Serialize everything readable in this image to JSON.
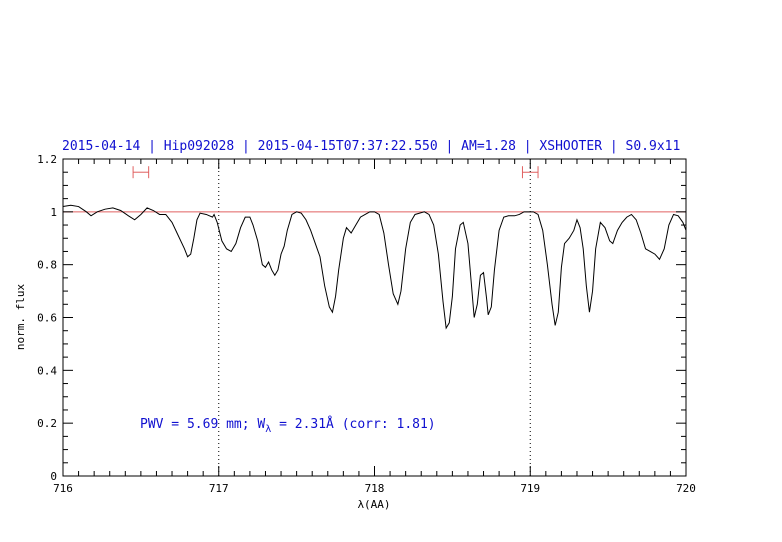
{
  "chart_data": {
    "type": "line",
    "title": "2015-04-14 | Hip092028 | 2015-04-15T07:37:22.550 | AM=1.28 | XSHOOTER | S0.9x11",
    "xlabel": "λ(AA)",
    "ylabel": "norm. flux",
    "xlim": [
      716,
      720
    ],
    "ylim": [
      0,
      1.2
    ],
    "x_ticks": [
      "716",
      "717",
      "718",
      "719",
      "720"
    ],
    "y_ticks": [
      "0",
      "0.2",
      "0.4",
      "0.6",
      "0.8",
      "1",
      "1.2"
    ],
    "x_tick_values": [
      716,
      717,
      718,
      719,
      720
    ],
    "y_tick_values": [
      0,
      0.2,
      0.4,
      0.6,
      0.8,
      1.0,
      1.2
    ],
    "grid": false,
    "annotation": {
      "pre": "PWV = 5.69 mm; W",
      "sub": "λ",
      "post": " = 2.31Å (corr: 1.81)"
    },
    "reference_line": {
      "y": 1.0,
      "color": "#e06060"
    },
    "vertical_markers": [
      717.0,
      719.0
    ],
    "continuum_intervals": [
      {
        "x1": 716.45,
        "x2": 716.55,
        "y": 1.15
      },
      {
        "x1": 718.95,
        "x2": 719.05,
        "y": 1.15
      }
    ],
    "colors": {
      "title": "#1010d0",
      "annotation": "#1010d0",
      "spectrum": "#000000",
      "reference": "#e06060"
    },
    "series": [
      {
        "points": [
          [
            716.0,
            1.02
          ],
          [
            716.05,
            1.025
          ],
          [
            716.1,
            1.02
          ],
          [
            716.15,
            1.0
          ],
          [
            716.18,
            0.985
          ],
          [
            716.22,
            1.0
          ],
          [
            716.27,
            1.01
          ],
          [
            716.32,
            1.015
          ],
          [
            716.37,
            1.005
          ],
          [
            716.42,
            0.985
          ],
          [
            716.46,
            0.97
          ],
          [
            716.5,
            0.99
          ],
          [
            716.54,
            1.015
          ],
          [
            716.58,
            1.005
          ],
          [
            716.62,
            0.99
          ],
          [
            716.66,
            0.99
          ],
          [
            716.7,
            0.96
          ],
          [
            716.74,
            0.91
          ],
          [
            716.78,
            0.86
          ],
          [
            716.8,
            0.83
          ],
          [
            716.82,
            0.84
          ],
          [
            716.84,
            0.9
          ],
          [
            716.86,
            0.97
          ],
          [
            716.88,
            0.995
          ],
          [
            716.92,
            0.99
          ],
          [
            716.94,
            0.985
          ],
          [
            716.96,
            0.98
          ],
          [
            716.97,
            0.99
          ],
          [
            716.99,
            0.96
          ],
          [
            717.02,
            0.89
          ],
          [
            717.05,
            0.86
          ],
          [
            717.08,
            0.85
          ],
          [
            717.11,
            0.88
          ],
          [
            717.14,
            0.94
          ],
          [
            717.17,
            0.98
          ],
          [
            717.2,
            0.98
          ],
          [
            717.22,
            0.95
          ],
          [
            717.25,
            0.89
          ],
          [
            717.28,
            0.8
          ],
          [
            717.3,
            0.79
          ],
          [
            717.32,
            0.81
          ],
          [
            717.34,
            0.78
          ],
          [
            717.36,
            0.76
          ],
          [
            717.38,
            0.78
          ],
          [
            717.4,
            0.84
          ],
          [
            717.42,
            0.87
          ],
          [
            717.44,
            0.93
          ],
          [
            717.47,
            0.99
          ],
          [
            717.5,
            1.0
          ],
          [
            717.53,
            0.995
          ],
          [
            717.56,
            0.97
          ],
          [
            717.59,
            0.93
          ],
          [
            717.62,
            0.88
          ],
          [
            717.65,
            0.83
          ],
          [
            717.68,
            0.72
          ],
          [
            717.71,
            0.64
          ],
          [
            717.73,
            0.62
          ],
          [
            717.75,
            0.68
          ],
          [
            717.77,
            0.78
          ],
          [
            717.8,
            0.9
          ],
          [
            717.82,
            0.94
          ],
          [
            717.85,
            0.92
          ],
          [
            717.88,
            0.95
          ],
          [
            717.91,
            0.98
          ],
          [
            717.94,
            0.99
          ],
          [
            717.97,
            1.0
          ],
          [
            718.0,
            1.0
          ],
          [
            718.03,
            0.99
          ],
          [
            718.06,
            0.92
          ],
          [
            718.09,
            0.8
          ],
          [
            718.12,
            0.69
          ],
          [
            718.15,
            0.65
          ],
          [
            718.17,
            0.7
          ],
          [
            718.2,
            0.86
          ],
          [
            718.23,
            0.96
          ],
          [
            718.26,
            0.99
          ],
          [
            718.29,
            0.995
          ],
          [
            718.32,
            1.0
          ],
          [
            718.35,
            0.99
          ],
          [
            718.38,
            0.95
          ],
          [
            718.41,
            0.84
          ],
          [
            718.44,
            0.66
          ],
          [
            718.46,
            0.56
          ],
          [
            718.48,
            0.58
          ],
          [
            718.5,
            0.68
          ],
          [
            718.52,
            0.86
          ],
          [
            718.55,
            0.95
          ],
          [
            718.57,
            0.96
          ],
          [
            718.6,
            0.88
          ],
          [
            718.62,
            0.74
          ],
          [
            718.64,
            0.6
          ],
          [
            718.66,
            0.65
          ],
          [
            718.68,
            0.76
          ],
          [
            718.7,
            0.77
          ],
          [
            718.72,
            0.67
          ],
          [
            718.73,
            0.61
          ],
          [
            718.75,
            0.64
          ],
          [
            718.77,
            0.78
          ],
          [
            718.8,
            0.93
          ],
          [
            718.83,
            0.98
          ],
          [
            718.86,
            0.985
          ],
          [
            718.9,
            0.985
          ],
          [
            718.93,
            0.99
          ],
          [
            718.96,
            1.0
          ],
          [
            718.99,
            1.0
          ],
          [
            719.02,
            1.0
          ],
          [
            719.05,
            0.99
          ],
          [
            719.08,
            0.93
          ],
          [
            719.11,
            0.8
          ],
          [
            719.14,
            0.65
          ],
          [
            719.16,
            0.57
          ],
          [
            719.18,
            0.62
          ],
          [
            719.2,
            0.79
          ],
          [
            719.22,
            0.88
          ],
          [
            719.25,
            0.9
          ],
          [
            719.28,
            0.93
          ],
          [
            719.3,
            0.97
          ],
          [
            719.32,
            0.94
          ],
          [
            719.34,
            0.86
          ],
          [
            719.36,
            0.72
          ],
          [
            719.38,
            0.62
          ],
          [
            719.4,
            0.7
          ],
          [
            719.42,
            0.86
          ],
          [
            719.45,
            0.96
          ],
          [
            719.48,
            0.94
          ],
          [
            719.51,
            0.89
          ],
          [
            719.53,
            0.88
          ],
          [
            719.56,
            0.93
          ],
          [
            719.59,
            0.96
          ],
          [
            719.62,
            0.98
          ],
          [
            719.65,
            0.99
          ],
          [
            719.68,
            0.97
          ],
          [
            719.71,
            0.92
          ],
          [
            719.74,
            0.86
          ],
          [
            719.77,
            0.85
          ],
          [
            719.8,
            0.84
          ],
          [
            719.83,
            0.82
          ],
          [
            719.86,
            0.86
          ],
          [
            719.89,
            0.95
          ],
          [
            719.92,
            0.99
          ],
          [
            719.95,
            0.985
          ],
          [
            719.98,
            0.96
          ],
          [
            720.0,
            0.93
          ]
        ]
      }
    ]
  }
}
